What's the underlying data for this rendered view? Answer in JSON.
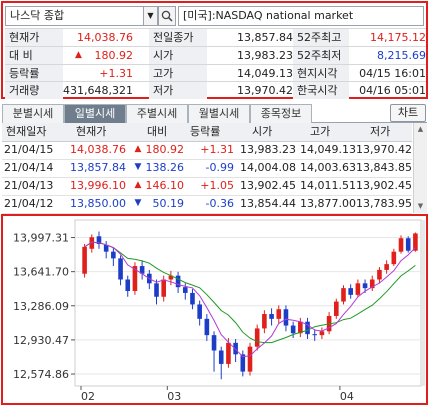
{
  "search": {
    "value": "나스닥 종합",
    "market": "[미국]:NASDAQ national market",
    "search_icon": "magnifier-icon",
    "dropdown_icon": "chevron-down-icon"
  },
  "quote": {
    "current_label": "현재가",
    "current_value": "14,038.76",
    "change_label": "대 비",
    "change_value": "180.92",
    "change_arrow": "▲",
    "rate_label": "등락률",
    "rate_value": "+1.31",
    "volume_label": "거래량",
    "volume_value": "431,648,321",
    "prev_close_label": "전일종가",
    "prev_close_value": "13,857.84",
    "open_label": "시가",
    "open_value": "13,983.23",
    "high_label": "고가",
    "high_value": "14,049.13",
    "low_label": "저가",
    "low_value": "13,970.42",
    "w52_high_label": "52주최고",
    "w52_high_value": "14,175.12",
    "w52_low_label": "52주최저",
    "w52_low_value": "8,215.69",
    "local_time_label": "현지시각",
    "local_time_value": "04/15 16:01",
    "kr_time_label": "한국시각",
    "kr_time_value": "04/16 05:01"
  },
  "tabs": [
    "분별시세",
    "일별시세",
    "주별시세",
    "월별시세",
    "종목정보"
  ],
  "active_tab": 1,
  "chart_button": "차트",
  "daily": {
    "headers": [
      "현재일자",
      "현재가",
      "대비",
      "등락률",
      "시가",
      "고가",
      "저가"
    ],
    "rows": [
      {
        "date": "21/04/15",
        "price": "14,038.76",
        "arrow": "▲",
        "diff": "180.92",
        "rate": "+1.31",
        "open": "13,983.23",
        "high": "14,049.13",
        "low": "13,970.42",
        "dir": "up"
      },
      {
        "date": "21/04/14",
        "price": "13,857.84",
        "arrow": "▼",
        "diff": "138.26",
        "rate": "-0.99",
        "open": "14,004.08",
        "high": "14,003.63",
        "low": "13,843.85",
        "dir": "down"
      },
      {
        "date": "21/04/13",
        "price": "13,996.10",
        "arrow": "▲",
        "diff": "146.10",
        "rate": "+1.05",
        "open": "13,902.45",
        "high": "14,011.51",
        "low": "13,902.45",
        "dir": "up"
      },
      {
        "date": "21/04/12",
        "price": "13,850.00",
        "arrow": "▼",
        "diff": "50.19",
        "rate": "-0.36",
        "open": "13,854.44",
        "high": "13,877.00",
        "low": "13,783.95",
        "dir": "down"
      }
    ]
  },
  "colors": {
    "up": "#e0201a",
    "down": "#1c3ec7",
    "ma_short": "#b23ad6",
    "ma_long": "#1f9a24",
    "panel_border": "#e01e1e"
  },
  "chart_data": {
    "type": "candlestick",
    "y_ticks": [
      "13,997.31",
      "13,641.70",
      "13,286.09",
      "12,930.47",
      "12,574.86"
    ],
    "x_ticks": [
      "02",
      "03",
      "04"
    ],
    "ylim": [
      12450,
      14180
    ],
    "series": [
      {
        "name": "candles",
        "values": [
          [
            13620,
            13900,
            13580,
            13930
          ],
          [
            13880,
            14000,
            13840,
            14030
          ],
          [
            14010,
            13930,
            13880,
            14060
          ],
          [
            13920,
            13850,
            13780,
            13960
          ],
          [
            13850,
            13780,
            13700,
            13890
          ],
          [
            13780,
            13560,
            13500,
            13810
          ],
          [
            13560,
            13440,
            13380,
            13600
          ],
          [
            13440,
            13700,
            13400,
            13740
          ],
          [
            13700,
            13620,
            13560,
            13760
          ],
          [
            13620,
            13520,
            13460,
            13660
          ],
          [
            13520,
            13380,
            13300,
            13560
          ],
          [
            13380,
            13560,
            13330,
            13600
          ],
          [
            13560,
            13600,
            13500,
            13650
          ],
          [
            13600,
            13480,
            13420,
            13640
          ],
          [
            13480,
            13420,
            13350,
            13520
          ],
          [
            13420,
            13300,
            13250,
            13460
          ],
          [
            13300,
            13150,
            13080,
            13340
          ],
          [
            13150,
            12980,
            12920,
            13200
          ],
          [
            12980,
            12820,
            12600,
            13020
          ],
          [
            12820,
            12680,
            12520,
            12860
          ],
          [
            12680,
            12900,
            12640,
            12950
          ],
          [
            12900,
            12780,
            12700,
            12940
          ],
          [
            12780,
            12600,
            12550,
            12820
          ],
          [
            12600,
            12860,
            12560,
            12900
          ],
          [
            12860,
            13050,
            12820,
            13090
          ],
          [
            13050,
            13200,
            13000,
            13240
          ],
          [
            13200,
            13150,
            13080,
            13260
          ],
          [
            13150,
            13250,
            13100,
            13290
          ],
          [
            13250,
            13080,
            13020,
            13290
          ],
          [
            13080,
            13000,
            12950,
            13120
          ],
          [
            13000,
            13120,
            12960,
            13160
          ],
          [
            13120,
            12990,
            12940,
            13160
          ],
          [
            12990,
            12980,
            12920,
            13040
          ],
          [
            12980,
            13020,
            12940,
            13060
          ],
          [
            13020,
            13180,
            12990,
            13220
          ],
          [
            13180,
            13330,
            13150,
            13360
          ],
          [
            13330,
            13470,
            13300,
            13500
          ],
          [
            13470,
            13400,
            13360,
            13510
          ],
          [
            13400,
            13520,
            13380,
            13560
          ],
          [
            13520,
            13470,
            13420,
            13560
          ],
          [
            13470,
            13560,
            13440,
            13600
          ],
          [
            13560,
            13660,
            13520,
            13690
          ],
          [
            13660,
            13720,
            13620,
            13760
          ],
          [
            13720,
            13850,
            13700,
            13880
          ],
          [
            13850,
            13990,
            13830,
            14020
          ],
          [
            13990,
            13860,
            13840,
            14010
          ],
          [
            13860,
            14040,
            13850,
            14050
          ]
        ]
      }
    ]
  }
}
